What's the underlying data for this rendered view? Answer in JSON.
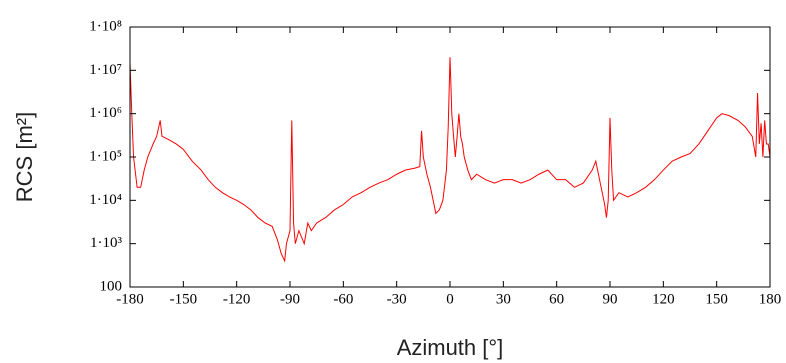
{
  "chart_data": {
    "type": "line",
    "xlabel": "Azimuth [°]",
    "ylabel": "RCS [m²]",
    "log_y": true,
    "grid": false,
    "xlim": [
      -180,
      180
    ],
    "xticks": [
      -180,
      -150,
      -120,
      -90,
      -60,
      -30,
      0,
      30,
      60,
      90,
      120,
      150,
      180
    ],
    "ylim": [
      100,
      100000000
    ],
    "yticks": [
      100,
      {
        "value": 1000,
        "label": "1·10³"
      },
      {
        "value": 10000,
        "label": "1·10⁴"
      },
      {
        "value": 100000,
        "label": "1·10⁵"
      },
      {
        "value": 1000000,
        "label": "1·10⁶"
      },
      {
        "value": 10000000,
        "label": "1·10⁷"
      },
      {
        "value": 100000000,
        "label": "1·10⁸"
      }
    ],
    "series": [
      {
        "color": "#ff0000",
        "x": [
          -180,
          -179,
          -178,
          -176,
          -174,
          -172,
          -170,
          -167,
          -165,
          -163,
          -162,
          -158,
          -154,
          -150,
          -145,
          -140,
          -136,
          -132,
          -128,
          -124,
          -120,
          -116,
          -112,
          -108,
          -104,
          -100,
          -97,
          -95,
          -93,
          -92,
          -90,
          -89,
          -88,
          -87,
          -85,
          -82,
          -80,
          -78,
          -75,
          -70,
          -65,
          -60,
          -55,
          -50,
          -45,
          -40,
          -35,
          -30,
          -25,
          -20,
          -17,
          -16,
          -15,
          -13,
          -11,
          -9,
          -8,
          -6,
          -4,
          -2,
          -1,
          0,
          0.5,
          1,
          2,
          3,
          4,
          5,
          6,
          7,
          8,
          10,
          12,
          15,
          20,
          25,
          30,
          35,
          40,
          45,
          50,
          55,
          60,
          65,
          70,
          75,
          80,
          82,
          85,
          87,
          88,
          89,
          90,
          91,
          92,
          95,
          100,
          105,
          110,
          115,
          120,
          125,
          130,
          135,
          140,
          145,
          150,
          153,
          157,
          162,
          166,
          170,
          172,
          173,
          174,
          175,
          176,
          177,
          178,
          179,
          180
        ],
        "values": [
          15000000,
          1000000,
          100000,
          20000,
          20000,
          50000,
          100000,
          200000,
          300000,
          700000,
          300000,
          250000,
          200000,
          150000,
          80000,
          50000,
          30000,
          20000,
          15000,
          12000,
          10000,
          8000,
          6000,
          4000,
          3000,
          2500,
          1200,
          600,
          400,
          1000,
          2000,
          700000,
          3000,
          1000,
          2000,
          1000,
          3000,
          2000,
          3000,
          4000,
          6000,
          8000,
          12000,
          15000,
          20000,
          25000,
          30000,
          40000,
          50000,
          55000,
          60000,
          400000,
          100000,
          40000,
          20000,
          8000,
          5000,
          6000,
          10000,
          50000,
          500000,
          20000000,
          5000000,
          1000000,
          300000,
          100000,
          300000,
          1000000,
          300000,
          200000,
          100000,
          50000,
          30000,
          40000,
          30000,
          25000,
          30000,
          30000,
          25000,
          30000,
          40000,
          50000,
          30000,
          30000,
          20000,
          25000,
          50000,
          80000,
          20000,
          8000,
          4000,
          10000,
          800000,
          50000,
          10000,
          15000,
          12000,
          15000,
          20000,
          30000,
          50000,
          80000,
          100000,
          120000,
          200000,
          400000,
          800000,
          1000000,
          900000,
          700000,
          500000,
          300000,
          100000,
          3000000,
          200000,
          600000,
          100000,
          700000,
          200000,
          200000,
          100000
        ]
      }
    ]
  }
}
